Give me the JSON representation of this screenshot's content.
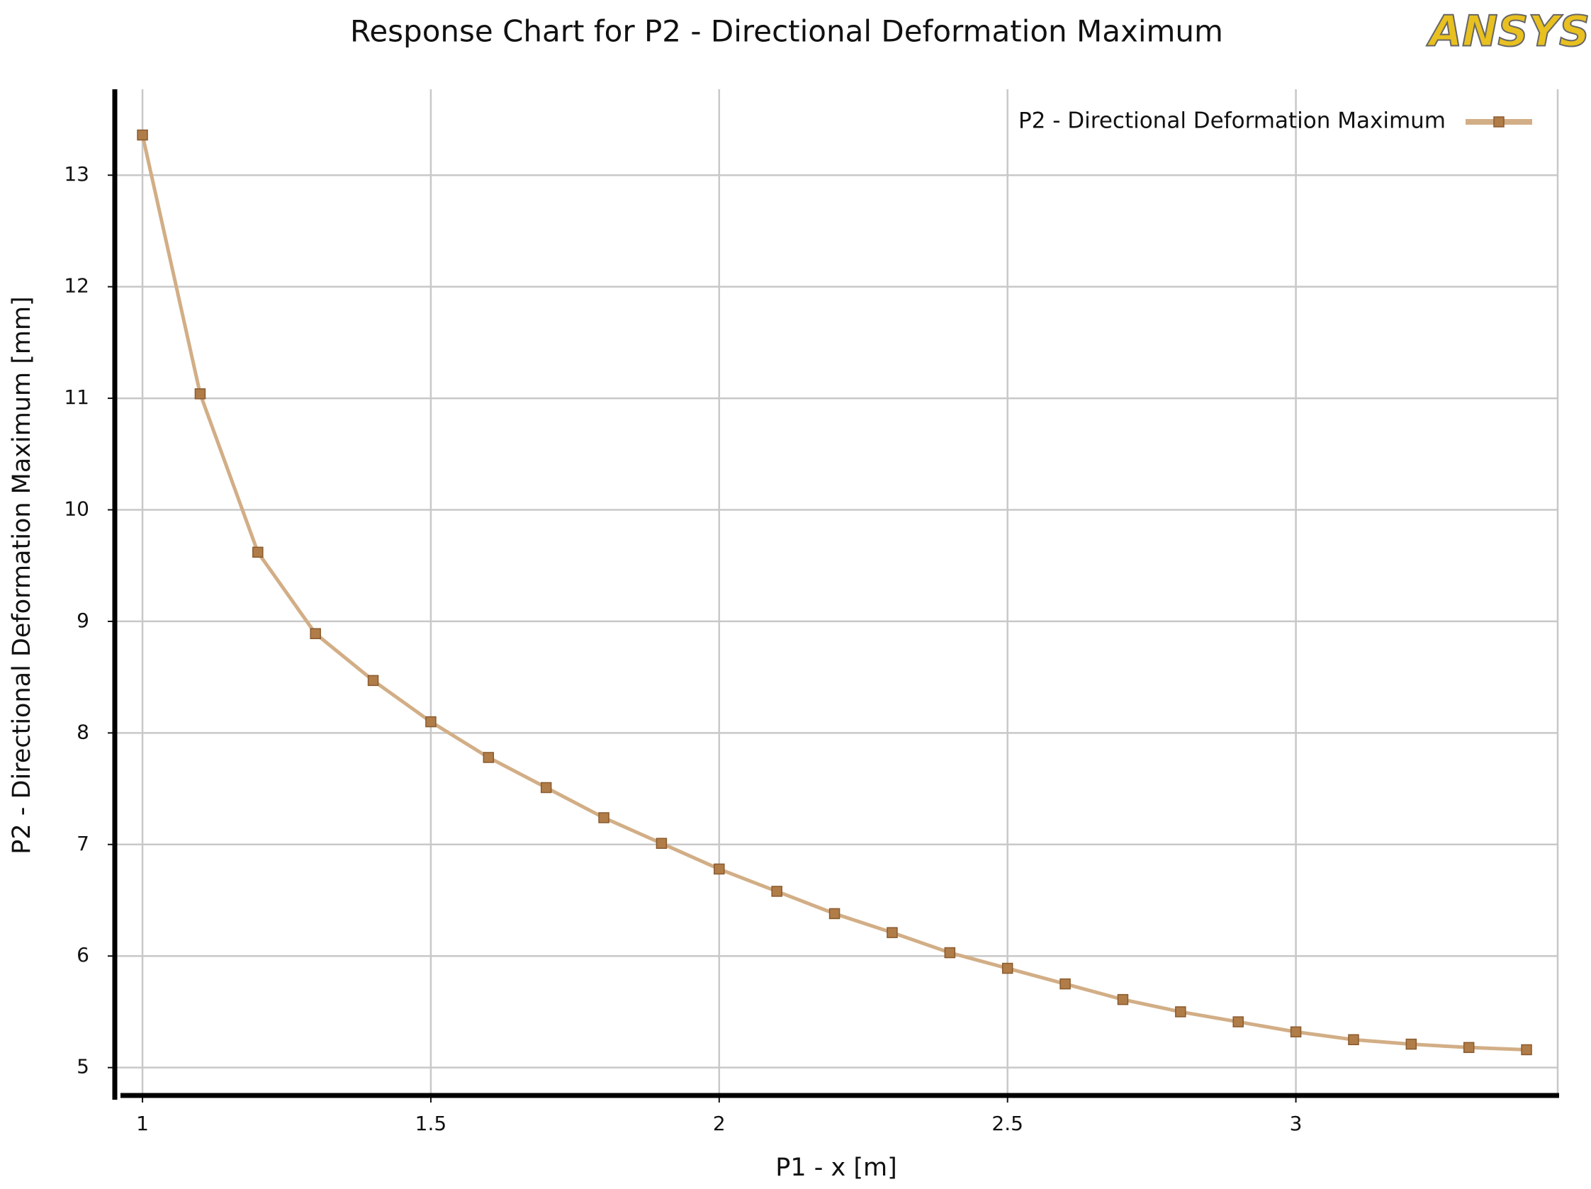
{
  "chart_data": {
    "type": "line",
    "title": "Response Chart for P2 - Directional Deformation Maximum",
    "logo": "ANSYS",
    "x_label": "P1 - x  [m]",
    "y_label": "P2 - Directional Deformation Maximum  [mm]",
    "x": [
      1.0,
      1.1,
      1.2,
      1.3,
      1.4,
      1.5,
      1.6,
      1.7,
      1.8,
      1.9,
      2.0,
      2.1,
      2.2,
      2.3,
      2.4,
      2.5,
      2.6,
      2.7,
      2.8,
      2.9,
      3.0,
      3.1,
      3.2,
      3.3,
      3.4
    ],
    "series": [
      {
        "name": "P2 - Directional Deformation Maximum",
        "color": "#d2ae86",
        "marker_color": "#b07c48",
        "values": [
          13.36,
          11.04,
          9.62,
          8.89,
          8.47,
          8.1,
          7.78,
          7.51,
          7.24,
          7.01,
          6.78,
          6.58,
          6.38,
          6.21,
          6.03,
          5.89,
          5.75,
          5.61,
          5.5,
          5.41,
          5.32,
          5.25,
          5.21,
          5.18,
          5.16
        ]
      }
    ],
    "xlim": [
      0.952,
      3.454
    ],
    "ylim": [
      4.75,
      13.77
    ],
    "xticks": [
      1,
      1.5,
      2,
      2.5,
      3
    ],
    "yticks": [
      5,
      6,
      7,
      8,
      9,
      10,
      11,
      12,
      13
    ],
    "grid": true,
    "legend": "upper right"
  }
}
